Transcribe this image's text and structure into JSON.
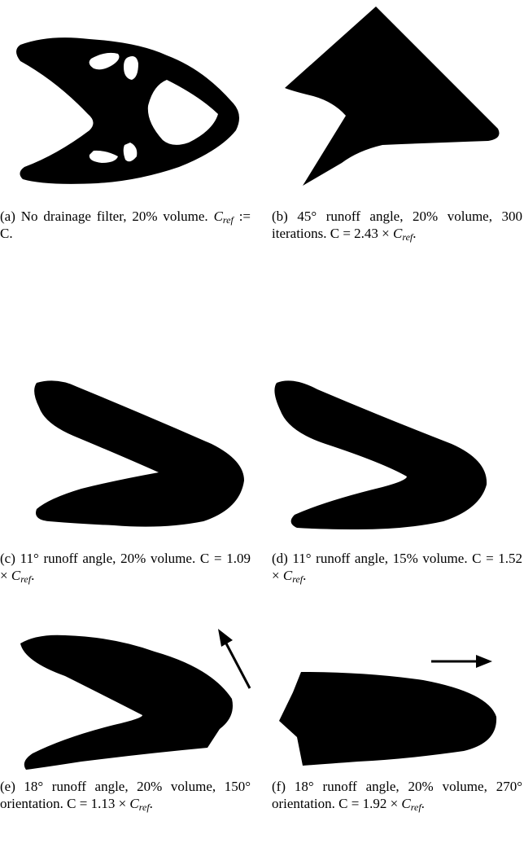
{
  "figure": {
    "subfigures": [
      {
        "caption": [
          "(a) No drainage filter, 20% volume.",
          "C",
          "ref",
          ":= C."
        ]
      },
      {
        "caption": [
          "(b) 45° runoff angle, 20% volume, 300 iterations. C = 2.43 ×",
          "C",
          "ref",
          "."
        ]
      },
      {
        "caption": [
          "(c) 11° runoff angle, 20% volume. C = 1.09 ×",
          "C",
          "ref",
          "."
        ]
      },
      {
        "caption": [
          "(d) 11° runoff angle, 15% volume. C = 1.52 ×",
          "C",
          "ref",
          "."
        ]
      },
      {
        "caption": [
          "(e) 18° runoff angle, 20% volume, 150° orientation. C = 1.13 ×",
          "C",
          "ref",
          "."
        ]
      },
      {
        "caption": [
          "(f) 18° runoff angle, 20% volume, 270° orientation. C = 1.92 ×",
          "C",
          "ref",
          "."
        ]
      }
    ]
  }
}
